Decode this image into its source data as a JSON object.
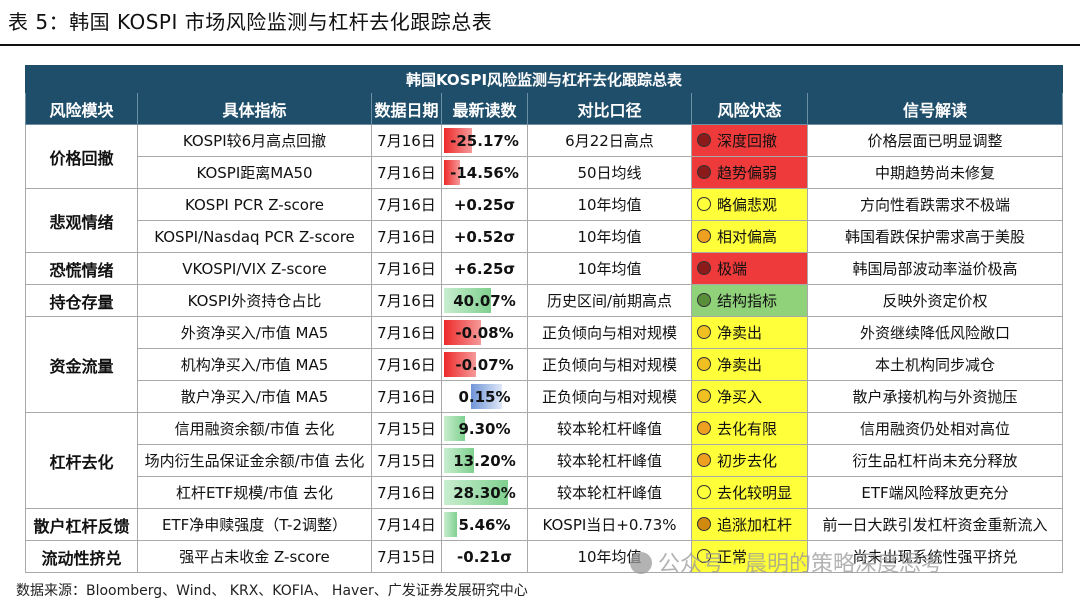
{
  "caption": "表 5：韩国 KOSPI 市场风险监测与杠杆去化跟踪总表",
  "table_title": "韩国KOSPI风险监测与杠杆去化跟踪总表",
  "headers": [
    "风险模块",
    "具体指标",
    "数据日期",
    "最新读数",
    "对比口径",
    "风险状态",
    "信号解读"
  ],
  "modules": [
    {
      "name": "价格回撤",
      "rows": [
        {
          "indicator": "KOSPI较6月高点回撤",
          "date": "7月16日",
          "value": "-25.17%",
          "bar_dir": "neg",
          "bar_frac": 0.33,
          "compare": "6月22日高点",
          "status": "深度回撤",
          "status_color": "#ee3a3a",
          "interp": "价格层面已明显调整"
        },
        {
          "indicator": "KOSPI距离MA50",
          "date": "7月16日",
          "value": "-14.56%",
          "bar_dir": "neg",
          "bar_frac": 0.19,
          "compare": "50日均线",
          "status": "趋势偏弱",
          "status_color": "#ee3a3a",
          "interp": "中期趋势尚未修复"
        }
      ]
    },
    {
      "name": "悲观情绪",
      "rows": [
        {
          "indicator": "KOSPI PCR Z-score",
          "date": "7月16日",
          "value": "+0.25σ",
          "compare": "10年均值",
          "status": "略偏悲观",
          "status_color": "#ffff3a",
          "interp": "方向性看跌需求不极端"
        },
        {
          "indicator": "KOSPI/Nasdaq PCR Z-score",
          "date": "7月16日",
          "value": "+0.52σ",
          "compare": "10年均值",
          "status": "相对偏高",
          "status_color": "#ffff3a",
          "interp": "韩国看跌保护需求高于美股"
        }
      ]
    },
    {
      "name": "恐慌情绪",
      "rows": [
        {
          "indicator": "VKOSPI/VIX Z-score",
          "date": "7月16日",
          "value": "+6.25σ",
          "compare": "10年均值",
          "status": "极端",
          "status_color": "#ee3a3a",
          "interp": "韩国局部波动率溢价极高"
        }
      ]
    },
    {
      "name": "持仓存量",
      "rows": [
        {
          "indicator": "KOSPI外资持仓占比",
          "date": "7月16日",
          "value": "40.07%",
          "bar_dir": "green",
          "bar_frac": 0.55,
          "compare": "历史区间/前期高点",
          "status": "结构指标",
          "status_color": "#8fd27a",
          "interp": "反映外资定价权"
        }
      ]
    },
    {
      "name": "资金流量",
      "rows": [
        {
          "indicator": "外资净买入/市值 MA5",
          "date": "7月16日",
          "value": "-0.08%",
          "bar_dir": "neg",
          "bar_frac": 0.43,
          "compare": "正负倾向与相对规模",
          "status": "净卖出",
          "status_color": "#ffff3a",
          "interp": "外资继续降低风险敞口"
        },
        {
          "indicator": "机构净买入/市值 MA5",
          "date": "7月16日",
          "value": "-0.07%",
          "bar_dir": "neg",
          "bar_frac": 0.38,
          "compare": "正负倾向与相对规模",
          "status": "净卖出",
          "status_color": "#ffff3a",
          "interp": "本土机构同步减仓"
        },
        {
          "indicator": "散户净买入/市值 MA5",
          "date": "7月16日",
          "value": "0.15%",
          "bar_dir": "blue",
          "bar_frac": 0.55,
          "compare": "正负倾向与相对规模",
          "status": "净买入",
          "status_color": "#ffff3a",
          "interp": "散户承接机构与外资抛压"
        }
      ]
    },
    {
      "name": "杠杆去化",
      "rows": [
        {
          "indicator": "信用融资余额/市值 去化",
          "date": "7月15日",
          "value": "9.30%",
          "bar_dir": "green",
          "bar_frac": 0.25,
          "compare": "较本轮杠杆峰值",
          "status": "去化有限",
          "status_color": "#ffff3a",
          "interp": "信用融资仍处相对高位"
        },
        {
          "indicator": "场内衍生品保证金余额/市值 去化",
          "date": "7月15日",
          "value": "13.20%",
          "bar_dir": "green",
          "bar_frac": 0.35,
          "compare": "较本轮杠杆峰值",
          "status": "初步去化",
          "status_color": "#ffff3a",
          "interp": "衍生品杠杆尚未充分释放"
        },
        {
          "indicator": "杠杆ETF规模/市值 去化",
          "date": "7月16日",
          "value": "28.30%",
          "bar_dir": "green",
          "bar_frac": 0.75,
          "compare": "较本轮杠杆峰值",
          "status": "去化较明显",
          "status_color": "#ffff3a",
          "interp": "ETF端风险释放更充分"
        }
      ]
    },
    {
      "name": "散户杠杆反馈",
      "rows": [
        {
          "indicator": "ETF净申赎强度（T-2调整）",
          "date": "7月14日",
          "value": "5.46%",
          "bar_dir": "green",
          "bar_frac": 0.15,
          "compare": "KOSPI当日+0.73%",
          "status": "追涨加杠杆",
          "status_color": "#ffff3a",
          "interp": "前一日大跌引发杠杆资金重新流入"
        }
      ]
    },
    {
      "name": "流动性挤兑",
      "rows": [
        {
          "indicator": "强平占未收金 Z-score",
          "date": "7月15日",
          "value": "-0.21σ",
          "compare": "10年均值",
          "status": "正常",
          "status_color": "#ffff3a",
          "interp": "尚未出现系统性强平挤兑"
        }
      ]
    }
  ],
  "dot_colors": {
    "深度回撤": "#8b1a1a",
    "趋势偏弱": "#8b1a1a",
    "极端": "#8b1a1a",
    "略偏悲观": "#ffff3a",
    "相对偏高": "#f0a020",
    "结构指标": "#5a8f3a",
    "净卖出": "#f0c020",
    "净买入": "#f0c020",
    "去化有限": "#f0a020",
    "初步去化": "#f0a020",
    "去化较明显": "#ffff3a",
    "追涨加杠杆": "#d08a10",
    "正常": "#ffff3a"
  },
  "footer": "数据来源：Bloomberg、Wind、 KRX、KOFIA、 Haver、广发证券发展研究中心",
  "watermark": "公众号 · 晨明的策略深度思考"
}
